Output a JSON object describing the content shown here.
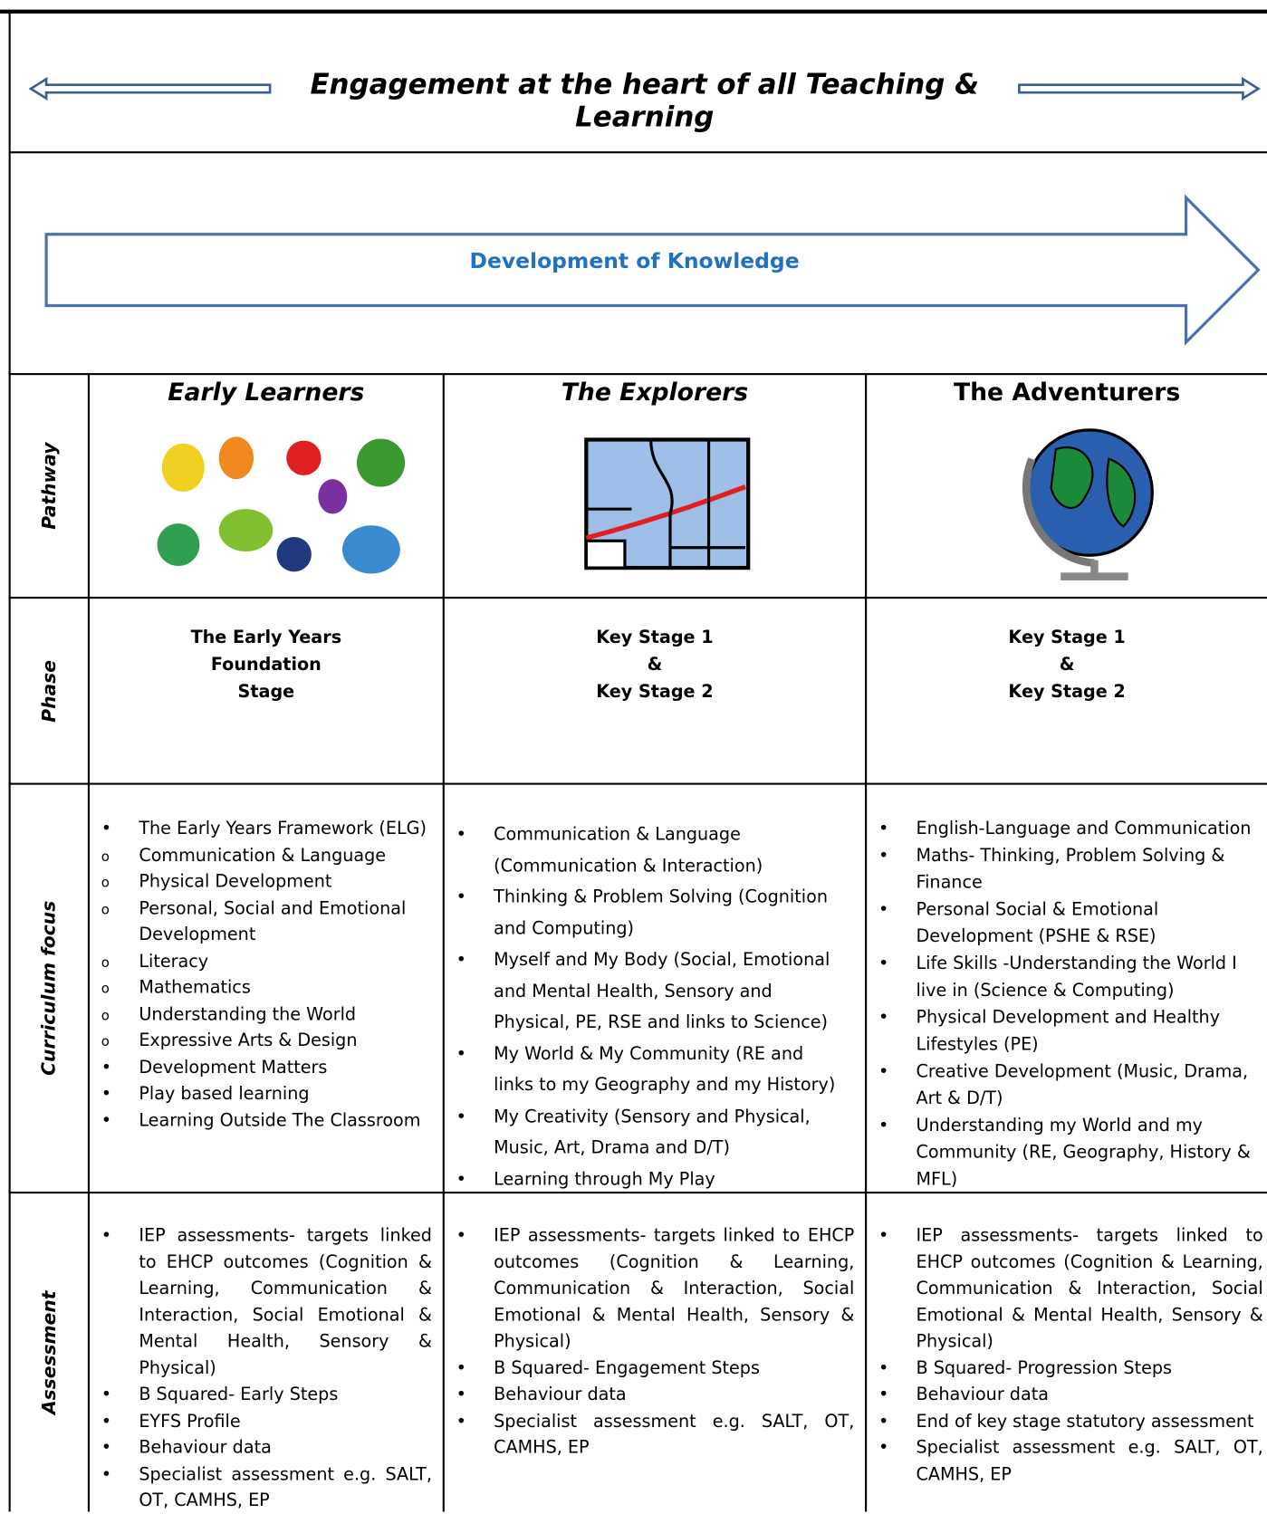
{
  "header": {
    "title": "Engagement at the heart of all Teaching & Learning"
  },
  "banner": {
    "label": "Development of Knowledge"
  },
  "row_labels": [
    "Pathway",
    "Phase",
    "Curriculum focus",
    "Assessment"
  ],
  "columns": [
    {
      "title": "Early Learners",
      "phase": [
        "The Early Years",
        "Foundation",
        "Stage"
      ],
      "curriculum": [
        {
          "text": "The Early Years Framework (ELG)",
          "items": [
            "Communication & Language",
            "Physical Development",
            "Personal, Social and Emotional Development",
            "Literacy",
            "Mathematics",
            "Understanding the World",
            "Expressive Arts & Design"
          ]
        },
        {
          "text": "Development Matters"
        },
        {
          "text": "Play based learning"
        },
        {
          "text": "Learning Outside The Classroom"
        }
      ],
      "assessment": [
        "IEP assessments- targets linked to EHCP outcomes (Cognition & Learning, Communication & Interaction, Social Emotional & Mental Health, Sensory & Physical)",
        "B Squared- Early Steps",
        "EYFS Profile",
        "Behaviour data",
        "Specialist assessment e.g. SALT, OT, CAMHS, EP"
      ]
    },
    {
      "title": "The Explorers",
      "phase": [
        "Key Stage 1",
        "&",
        "Key Stage 2"
      ],
      "curriculum": [
        {
          "text": "Communication & Language (Communication & Interaction)"
        },
        {
          "text": "Thinking & Problem Solving (Cognition and Computing)"
        },
        {
          "text": "Myself and My Body (Social, Emotional and Mental Health, Sensory and Physical, PE, RSE and links to Science)"
        },
        {
          "text": "My World & My Community (RE and links to my Geography and my History)"
        },
        {
          "text": "My Creativity (Sensory and Physical, Music, Art, Drama and D/T)"
        },
        {
          "text": "Learning through My Play"
        }
      ],
      "assessment": [
        "IEP assessments- targets linked to EHCP outcomes (Cognition & Learning, Communication & Interaction, Social Emotional & Mental Health, Sensory & Physical)",
        "B Squared- Engagement Steps",
        "Behaviour data",
        "Specialist assessment e.g. SALT, OT, CAMHS, EP"
      ]
    },
    {
      "title": "The Adventurers",
      "phase": [
        "Key Stage 1",
        "&",
        "Key Stage 2"
      ],
      "curriculum": [
        {
          "text": "English-Language and Communication"
        },
        {
          "text": "Maths- Thinking, Problem Solving & Finance"
        },
        {
          "text": "Personal Social & Emotional Development  (PSHE & RSE)"
        },
        {
          "text": "Life Skills -Understanding the World I live in (Science & Computing)"
        },
        {
          "text": "Physical Development and Healthy Lifestyles (PE)"
        },
        {
          "text": "Creative Development (Music, Drama, Art & D/T)"
        },
        {
          "text": "Understanding my World and my Community  (RE, Geography, History & MFL)"
        }
      ],
      "assessment": [
        "IEP assessments- targets linked to EHCP outcomes (Cognition & Learning, Communication & Interaction, Social Emotional & Mental Health, Sensory & Physical)",
        "B Squared- Progression Steps",
        "Behaviour data",
        "End of key stage statutory assessment",
        "Specialist assessment e.g. SALT, OT, CAMHS, EP"
      ]
    }
  ]
}
